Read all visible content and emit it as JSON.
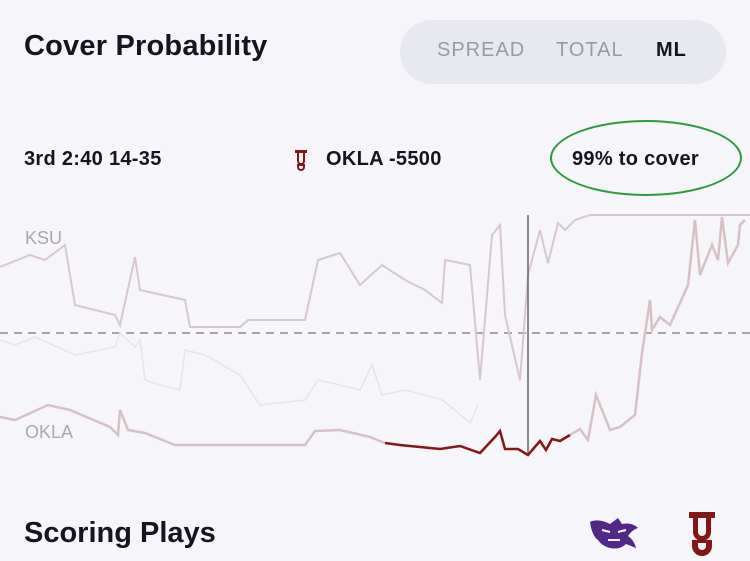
{
  "header": {
    "title": "Cover Probability"
  },
  "tabs": [
    {
      "label": "SPREAD",
      "active": false
    },
    {
      "label": "TOTAL",
      "active": false
    },
    {
      "label": "ML",
      "active": true
    }
  ],
  "status": {
    "game_state": "3rd 2:40 14-35",
    "line": "OKLA -5500",
    "cover": "99% to cover"
  },
  "chart": {
    "top_team": "KSU",
    "bottom_team": "OKLA"
  },
  "section": {
    "scoring_title": "Scoring Plays"
  },
  "colors": {
    "okla_crimson": "#841617",
    "ksu_purple": "#512888",
    "highlight_green": "#2e9a3a",
    "line_faint": "#d6c2c4"
  },
  "icons": [
    "ou-logo",
    "kstate-wildcat-logo"
  ]
}
